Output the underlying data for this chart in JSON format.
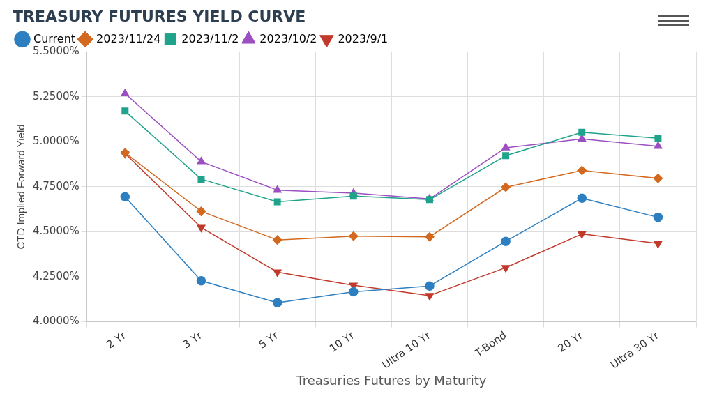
{
  "chart_data": {
    "type": "line",
    "title": "TREASURY FUTURES YIELD CURVE",
    "xlabel": "Treasuries Futures by Maturity",
    "ylabel": "CTD Implied Forward Yield",
    "categories": [
      "2 Yr",
      "3 Yr",
      "5 Yr",
      "10 Yr",
      "Ultra 10 Yr",
      "T-Bond",
      "20 Yr",
      "Ultra 30 Yr"
    ],
    "series": [
      {
        "name": "Current",
        "color": "#2e7fc0",
        "marker": "circle",
        "values": [
          4.695,
          4.228,
          4.106,
          4.167,
          4.199,
          4.447,
          4.687,
          4.581
        ]
      },
      {
        "name": "2023/11/24",
        "color": "#d2691e",
        "marker": "diamond",
        "values": [
          4.939,
          4.614,
          4.455,
          4.476,
          4.472,
          4.748,
          4.841,
          4.797
        ]
      },
      {
        "name": "2023/11/2",
        "color": "#1fa38a",
        "marker": "square",
        "values": [
          5.171,
          4.793,
          4.667,
          4.699,
          4.679,
          4.923,
          5.053,
          5.02
        ]
      },
      {
        "name": "2023/10/2",
        "color": "#9b4fc0",
        "marker": "triangle",
        "values": [
          5.268,
          4.89,
          4.732,
          4.715,
          4.683,
          4.967,
          5.016,
          4.976
        ]
      },
      {
        "name": "2023/9/1",
        "color": "#c0392b",
        "marker": "triangle-down",
        "values": [
          4.935,
          4.524,
          4.276,
          4.203,
          4.146,
          4.301,
          4.488,
          4.435
        ]
      }
    ],
    "ylim": [
      4.0,
      5.5
    ],
    "yticks": [
      {
        "value": 4.0,
        "label": "4.0000%"
      },
      {
        "value": 4.25,
        "label": "4.2500%"
      },
      {
        "value": 4.5,
        "label": "4.5000%"
      },
      {
        "value": 4.75,
        "label": "4.7500%"
      },
      {
        "value": 5.0,
        "label": "5.0000%"
      },
      {
        "value": 5.25,
        "label": "5.2500%"
      },
      {
        "value": 5.5,
        "label": "5.5000%"
      }
    ],
    "grid": true,
    "legend": "top left"
  }
}
